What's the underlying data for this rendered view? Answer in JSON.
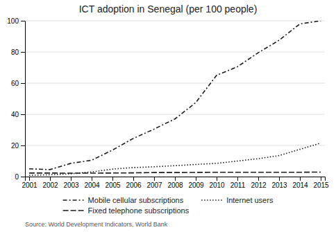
{
  "chart_data": {
    "type": "line",
    "title": "ICT adoption in Senegal (per 100 people)",
    "annotations": [
      "Source: World Development Indicators, World Bank"
    ],
    "x": [
      2001,
      2002,
      2003,
      2004,
      2005,
      2006,
      2007,
      2008,
      2009,
      2010,
      2011,
      2012,
      2013,
      2014,
      2015
    ],
    "series": [
      {
        "name": "Mobile cellular subscriptions",
        "color": "#1a1a1a",
        "line_style": "dashdot",
        "values": [
          5.0,
          4.5,
          8.5,
          10.5,
          17.0,
          24.5,
          30.5,
          37.0,
          47.5,
          65.0,
          70.5,
          79.5,
          87.5,
          98.0,
          100.0
        ]
      },
      {
        "name": "Internet users",
        "color": "#1a1a1a",
        "line_style": "dotted",
        "values": [
          0.8,
          1.2,
          1.8,
          3.0,
          4.8,
          5.8,
          6.3,
          7.0,
          7.8,
          8.5,
          10.0,
          11.5,
          13.5,
          17.5,
          21.5
        ]
      },
      {
        "name": "Fixed telephone subscriptions",
        "color": "#1a1a1a",
        "line_style": "dashed",
        "values": [
          2.3,
          2.3,
          2.2,
          2.2,
          2.3,
          2.4,
          2.6,
          2.6,
          2.7,
          2.8,
          2.8,
          2.8,
          2.8,
          2.8,
          2.9
        ]
      }
    ],
    "xlim": [
      2000.8,
      2015.2
    ],
    "xticks": [
      2001,
      2002,
      2003,
      2004,
      2005,
      2006,
      2007,
      2008,
      2009,
      2010,
      2011,
      2012,
      2013,
      2014,
      2015
    ],
    "ylim": [
      0,
      100
    ],
    "yticks": [
      0,
      20,
      40,
      60,
      80,
      100
    ],
    "grid": true,
    "legend": "bottom"
  }
}
